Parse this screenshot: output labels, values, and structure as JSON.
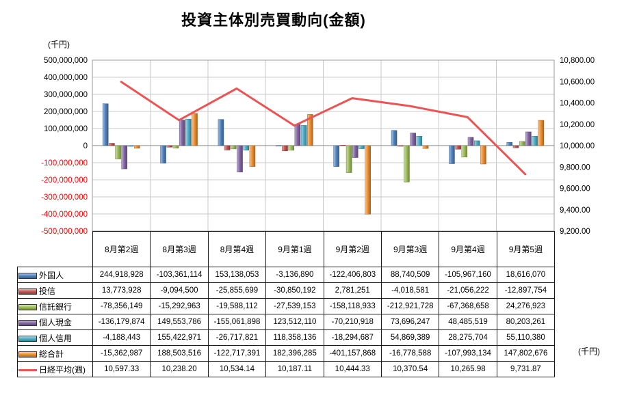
{
  "title": "投資主体別売買動向(金額)",
  "left_axis_unit_label": "(千円)",
  "right_axis_unit_label": "(千円)",
  "chart_data": {
    "type": "bar",
    "categories": [
      "8月第2週",
      "8月第3週",
      "8月第4週",
      "9月第1週",
      "9月第2週",
      "9月第3週",
      "9月第4週",
      "9月第5週"
    ],
    "series": [
      {
        "name": "外国人",
        "color": "#4F81BD",
        "values": [
          244918928,
          -103361114,
          153138053,
          -3136890,
          -122406803,
          88740509,
          -105967160,
          18616070
        ]
      },
      {
        "name": "投信",
        "color": "#C0504D",
        "values": [
          13773928,
          -9094500,
          -25855699,
          -30850192,
          2781251,
          -4018581,
          -21056222,
          -12897754
        ]
      },
      {
        "name": "信託銀行",
        "color": "#9BBB59",
        "values": [
          -78356149,
          -15292963,
          -19588112,
          -27539153,
          -158118933,
          -212921728,
          -67368658,
          24276923
        ]
      },
      {
        "name": "個人現金",
        "color": "#8064A2",
        "values": [
          -136179874,
          149553786,
          -155061898,
          123512110,
          -70210918,
          73696247,
          48485519,
          80203261
        ]
      },
      {
        "name": "個人信用",
        "color": "#4BACC6",
        "values": [
          -4188443,
          155422971,
          -26717821,
          118358136,
          -18294687,
          54869389,
          28275704,
          55110380
        ]
      },
      {
        "name": "総合計",
        "color": "#ED8C2E",
        "values": [
          -15362987,
          188503516,
          -122717391,
          182396285,
          -401157868,
          -16778588,
          -107993134,
          147802676
        ]
      }
    ],
    "line_series": {
      "name": "日経平均(週)",
      "color": "#EA5455",
      "axis": "right",
      "values": [
        10597.33,
        10238.2,
        10534.14,
        10187.11,
        10444.33,
        10370.54,
        10265.98,
        9731.87
      ]
    },
    "left_axis": {
      "min": -500000000,
      "max": 500000000,
      "step": 100000000,
      "negative_color": "#FF0000",
      "tick_labels": [
        "500,000,000",
        "400,000,000",
        "300,000,000",
        "200,000,000",
        "100,000,000",
        "0",
        "-100,000,000",
        "-200,000,000",
        "-300,000,000",
        "-400,000,000",
        "-500,000,000"
      ]
    },
    "right_axis": {
      "min": 9200,
      "max": 10800,
      "step": 200,
      "tick_labels": [
        "10,800.00",
        "10,600.00",
        "10,400.00",
        "10,200.00",
        "10,000.00",
        "9,800.00",
        "9,600.00",
        "9,400.00",
        "9,200.00"
      ]
    },
    "grid": true,
    "legend_position": "table-left"
  },
  "table": {
    "category_headers": [
      "8月第2週",
      "8月第3週",
      "8月第4週",
      "9月第1週",
      "9月第2週",
      "9月第3週",
      "9月第4週",
      "9月第5週"
    ],
    "rows": [
      {
        "label": "外国人",
        "marker": "bar",
        "color": "#4F81BD",
        "cells": [
          "244,918,928",
          "-103,361,114",
          "153,138,053",
          "-3,136,890",
          "-122,406,803",
          "88,740,509",
          "-105,967,160",
          "18,616,070"
        ]
      },
      {
        "label": "投信",
        "marker": "bar",
        "color": "#C0504D",
        "cells": [
          "13,773,928",
          "-9,094,500",
          "-25,855,699",
          "-30,850,192",
          "2,781,251",
          "-4,018,581",
          "-21,056,222",
          "-12,897,754"
        ]
      },
      {
        "label": "信託銀行",
        "marker": "bar",
        "color": "#9BBB59",
        "cells": [
          "-78,356,149",
          "-15,292,963",
          "-19,588,112",
          "-27,539,153",
          "-158,118,933",
          "-212,921,728",
          "-67,368,658",
          "24,276,923"
        ]
      },
      {
        "label": "個人現金",
        "marker": "bar",
        "color": "#8064A2",
        "cells": [
          "-136,179,874",
          "149,553,786",
          "-155,061,898",
          "123,512,110",
          "-70,210,918",
          "73,696,247",
          "48,485,519",
          "80,203,261"
        ]
      },
      {
        "label": "個人信用",
        "marker": "bar",
        "color": "#4BACC6",
        "cells": [
          "-4,188,443",
          "155,422,971",
          "-26,717,821",
          "118,358,136",
          "-18,294,687",
          "54,869,389",
          "28,275,704",
          "55,110,380"
        ]
      },
      {
        "label": "総合計",
        "marker": "bar",
        "color": "#ED8C2E",
        "cells": [
          "-15,362,987",
          "188,503,516",
          "-122,717,391",
          "182,396,285",
          "-401,157,868",
          "-16,778,588",
          "-107,993,134",
          "147,802,676"
        ]
      },
      {
        "label": "日経平均(週)",
        "marker": "line",
        "color": "#EA5455",
        "cells": [
          "10,597.33",
          "10,238.20",
          "10,534.14",
          "10,187.11",
          "10,444.33",
          "10,370.54",
          "10,265.98",
          "9,731.87"
        ]
      }
    ]
  }
}
